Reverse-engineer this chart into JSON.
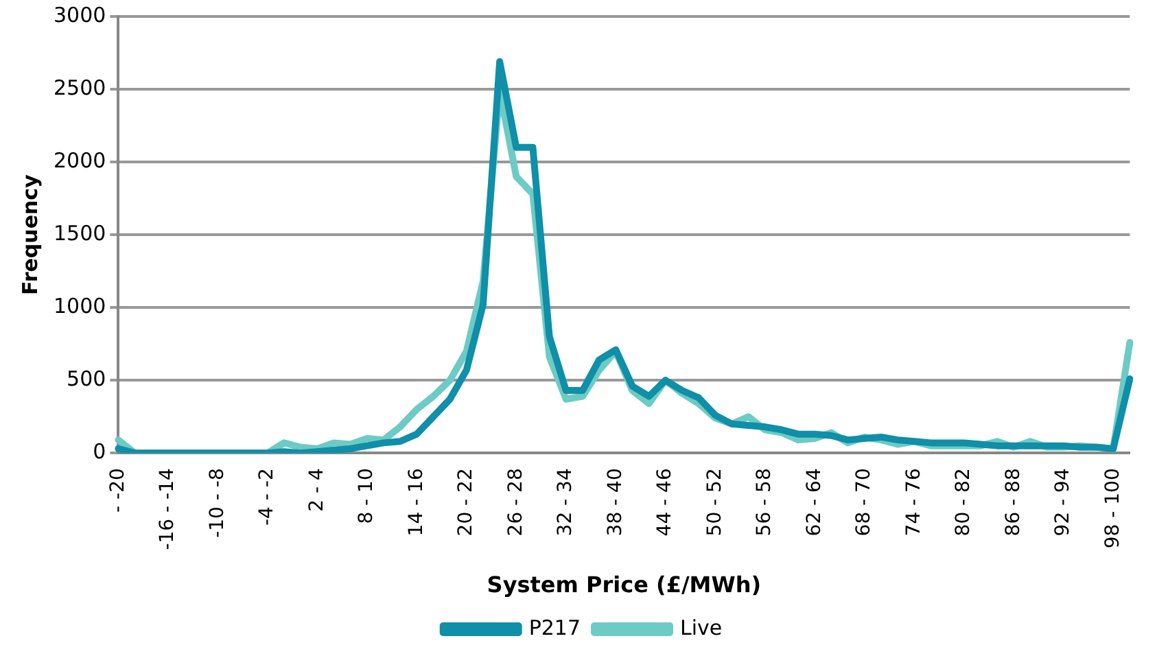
{
  "chart_data": {
    "type": "line",
    "xlabel": "System Price (£/MWh)",
    "ylabel": "Frequency",
    "categories": [
      "- -20",
      null,
      null,
      "-16 - -14",
      null,
      null,
      "-10 - -8",
      null,
      null,
      "-4 - -2",
      null,
      null,
      "2 - 4",
      null,
      null,
      "8 - 10",
      null,
      null,
      "14 - 16",
      null,
      null,
      "20 - 22",
      null,
      null,
      "26 - 28",
      null,
      null,
      "32 - 34",
      null,
      null,
      "38 - 40",
      null,
      null,
      "44 - 46",
      null,
      null,
      "50 - 52",
      null,
      null,
      "56 - 58",
      null,
      null,
      "62 - 64",
      null,
      null,
      "68 - 70",
      null,
      null,
      "74 - 76",
      null,
      null,
      "80 - 82",
      null,
      null,
      "86 - 88",
      null,
      null,
      "92 - 94",
      null,
      null,
      "98 - 100",
      null
    ],
    "series": [
      {
        "name": "P217",
        "color": "#0f8fa8",
        "values": [
          30,
          0,
          0,
          0,
          0,
          0,
          0,
          0,
          0,
          0,
          10,
          0,
          10,
          20,
          30,
          50,
          70,
          80,
          130,
          250,
          370,
          570,
          1020,
          2690,
          2100,
          2100,
          800,
          430,
          430,
          640,
          710,
          460,
          390,
          500,
          430,
          380,
          260,
          200,
          190,
          180,
          160,
          130,
          130,
          120,
          90,
          100,
          110,
          90,
          80,
          70,
          70,
          70,
          60,
          50,
          50,
          50,
          50,
          50,
          40,
          40,
          30,
          510
        ]
      },
      {
        "name": "Live",
        "color": "#6ccbc4",
        "values": [
          90,
          0,
          0,
          0,
          0,
          0,
          0,
          0,
          0,
          0,
          70,
          40,
          30,
          70,
          60,
          100,
          90,
          180,
          300,
          390,
          500,
          700,
          1180,
          2490,
          1900,
          1780,
          660,
          370,
          390,
          570,
          700,
          430,
          340,
          500,
          410,
          340,
          240,
          200,
          250,
          160,
          140,
          90,
          100,
          140,
          70,
          110,
          90,
          60,
          80,
          50,
          50,
          50,
          50,
          80,
          40,
          80,
          40,
          40,
          50,
          40,
          30,
          760
        ]
      }
    ],
    "ylim": [
      0,
      3000
    ],
    "yticks": [
      0,
      500,
      1000,
      1500,
      2000,
      2500,
      3000
    ],
    "grid": "y",
    "legend": "bottom",
    "marker": "none",
    "line_style": "solid"
  }
}
